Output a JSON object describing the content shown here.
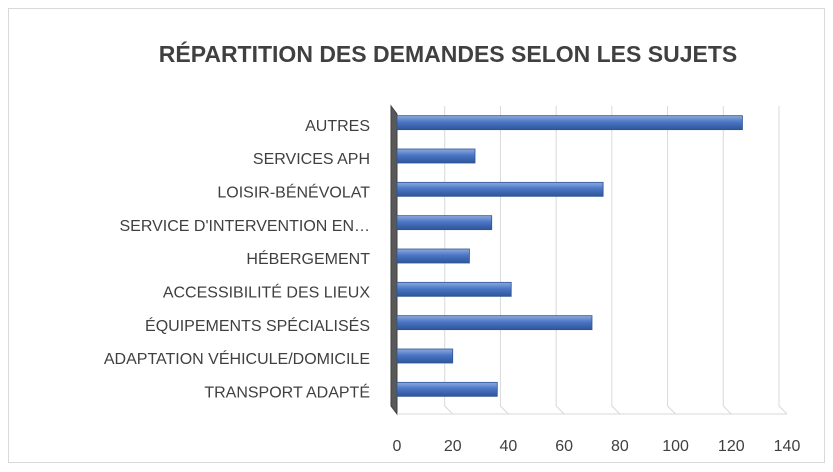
{
  "chart_data": {
    "type": "bar",
    "orientation": "horizontal",
    "title": "RÉPARTITION DES DEMANDES SELON LES SUJETS",
    "categories": [
      "AUTRES",
      "SERVICES APH",
      "LOISIR-BÉNÉVOLAT",
      "SERVICE D'INTERVENTION EN…",
      "HÉBERGEMENT",
      "ACCESSIBILITÉ DES LIEUX",
      "ÉQUIPEMENTS SPÉCIALISÉS",
      "ADAPTATION VÉHICULE/DOMICILE",
      "TRANSPORT ADAPTÉ"
    ],
    "values": [
      124,
      28,
      74,
      34,
      26,
      41,
      70,
      20,
      36
    ],
    "color": "#4472c4",
    "xlim": [
      0,
      140
    ],
    "xticks": [
      0,
      20,
      40,
      60,
      80,
      100,
      120,
      140
    ],
    "grid": true
  }
}
